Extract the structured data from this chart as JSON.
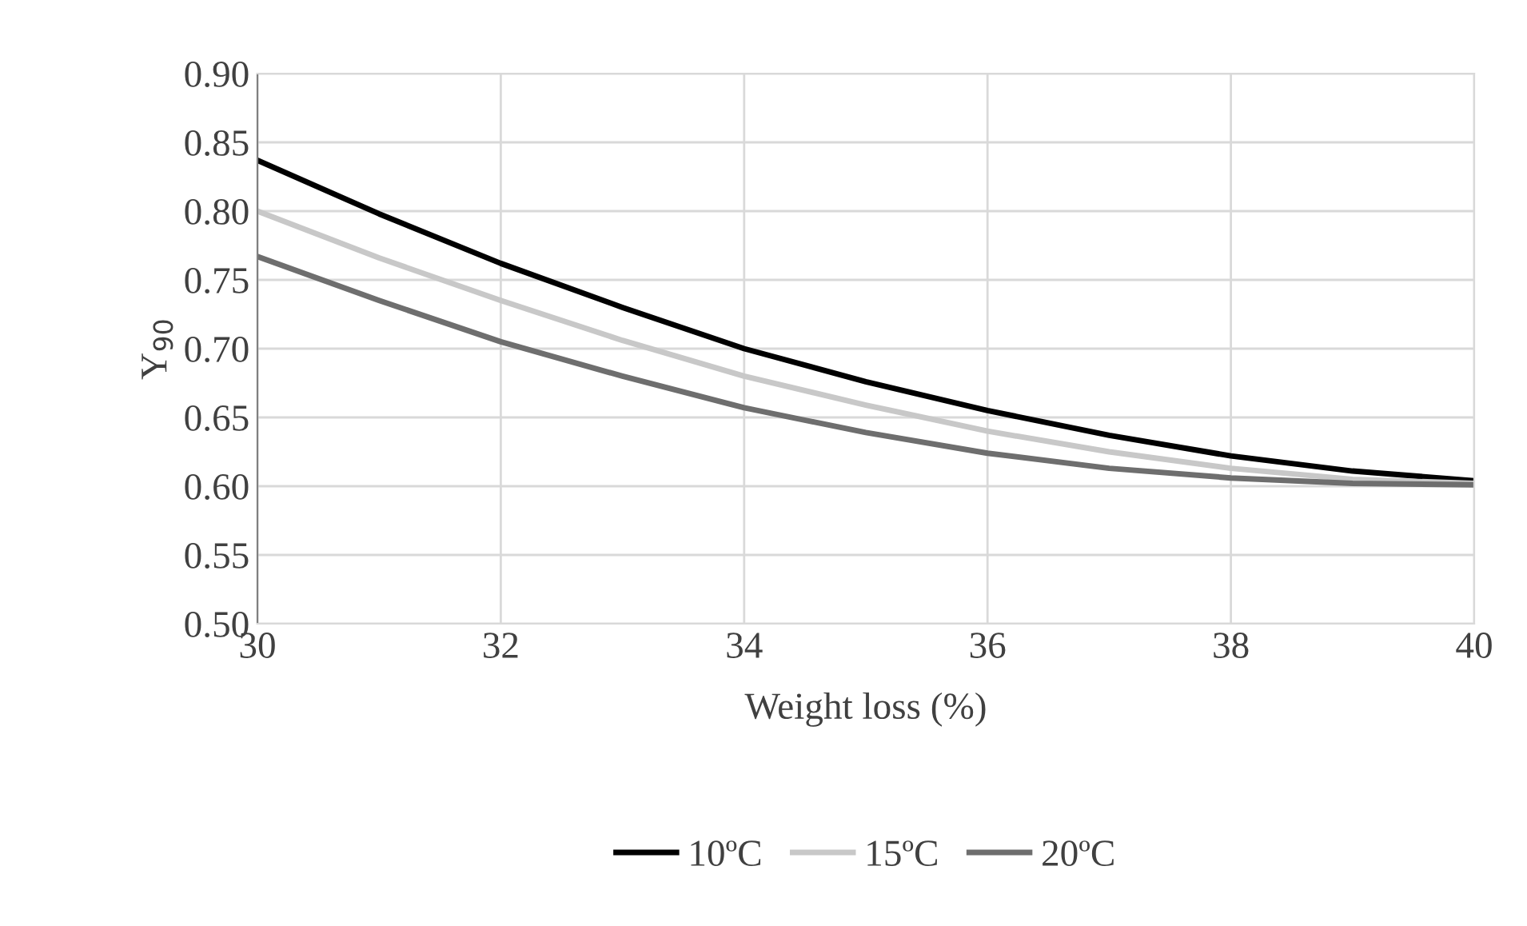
{
  "chart_data": {
    "type": "line",
    "xlabel": "Weight loss (%)",
    "ylabel": "Y$_{90}$",
    "x": [
      30,
      31,
      32,
      33,
      34,
      35,
      36,
      37,
      38,
      39,
      40
    ],
    "series": [
      {
        "name": "10ºC",
        "color": "#000000",
        "values": [
          0.837,
          0.798,
          0.762,
          0.73,
          0.7,
          0.676,
          0.655,
          0.637,
          0.622,
          0.611,
          0.604
        ]
      },
      {
        "name": "15ºC",
        "color": "#c8c8c8",
        "values": [
          0.8,
          0.766,
          0.735,
          0.706,
          0.68,
          0.659,
          0.64,
          0.625,
          0.613,
          0.605,
          0.602
        ]
      },
      {
        "name": "20ºC",
        "color": "#6e6e6e",
        "values": [
          0.767,
          0.735,
          0.705,
          0.68,
          0.657,
          0.639,
          0.624,
          0.613,
          0.606,
          0.602,
          0.601
        ]
      }
    ],
    "xlim": [
      30,
      40
    ],
    "xticks": [
      30,
      32,
      34,
      36,
      38,
      40
    ],
    "ylim": [
      0.5,
      0.9
    ],
    "yticks": [
      {
        "value": 0.5,
        "label": "0.50"
      },
      {
        "value": 0.55,
        "label": "0.55"
      },
      {
        "value": 0.6,
        "label": "0.60"
      },
      {
        "value": 0.65,
        "label": "0.65"
      },
      {
        "value": 0.7,
        "label": "0.70"
      },
      {
        "value": 0.75,
        "label": "0.75"
      },
      {
        "value": 0.8,
        "label": "0.80"
      },
      {
        "value": 0.85,
        "label": "0.85"
      },
      {
        "value": 0.9,
        "label": "0.90"
      }
    ],
    "grid": true,
    "legend": "bottom",
    "marker": "none",
    "line_style": "solid"
  }
}
